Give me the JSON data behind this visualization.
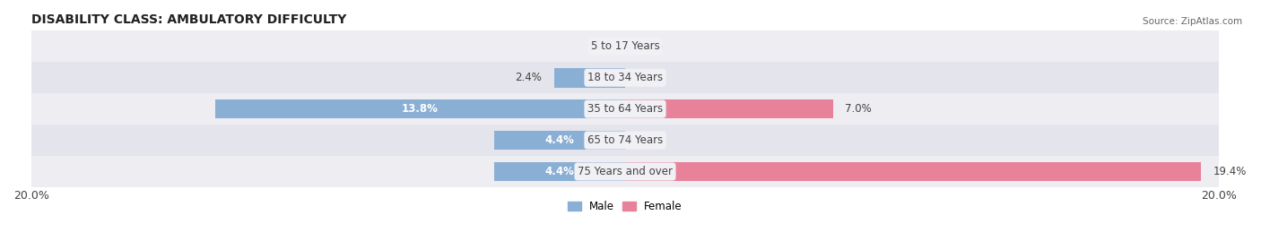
{
  "title": "DISABILITY CLASS: AMBULATORY DIFFICULTY",
  "source_text": "Source: ZipAtlas.com",
  "categories": [
    "5 to 17 Years",
    "18 to 34 Years",
    "35 to 64 Years",
    "65 to 74 Years",
    "75 Years and over"
  ],
  "male_values": [
    0.0,
    2.4,
    13.8,
    4.4,
    4.4
  ],
  "female_values": [
    0.0,
    0.0,
    7.0,
    0.0,
    19.4
  ],
  "male_color": "#8aafd4",
  "female_color": "#e8829a",
  "male_label": "Male",
  "female_label": "Female",
  "x_max": 20.0,
  "bar_height": 0.62,
  "row_bg_colors": [
    "#ededf2",
    "#e4e4ec",
    "#ededf2",
    "#e4e4ec",
    "#ededf2"
  ],
  "axis_label_fontsize": 9,
  "title_fontsize": 10,
  "label_fontsize": 8.5,
  "category_fontsize": 8.5,
  "tick_label_color": "#444444",
  "title_color": "#222222",
  "source_color": "#666666",
  "center_label_bg": "#f0f0f5",
  "inside_label_color": "#ffffff",
  "outside_label_color": "#444444",
  "inside_label_threshold": 3.0
}
